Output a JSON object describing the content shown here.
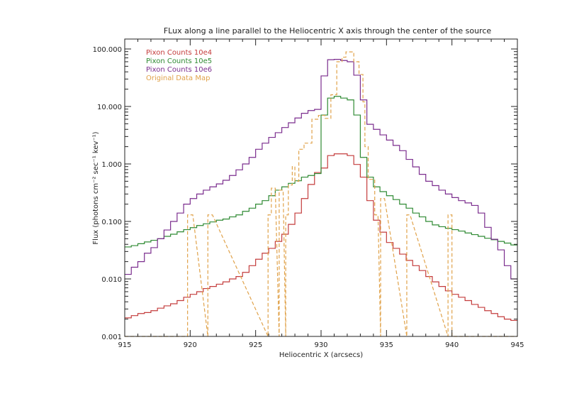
{
  "chart_data": {
    "type": "line",
    "title": "FLux along a line parallel to the Heliocentric X axis through the center of the source",
    "xlabel": "Heliocentric X (arcsecs)",
    "ylabel": "Flux (photons cm⁻² sec⁻¹ kev⁻¹)",
    "xlim": [
      915,
      945
    ],
    "ylim": [
      0.001,
      148
    ],
    "yscale": "log",
    "x_ticks": [
      915,
      920,
      925,
      930,
      935,
      940,
      945
    ],
    "x_tick_labels": [
      "915",
      "920",
      "925",
      "930",
      "935",
      "940",
      "945"
    ],
    "y_ticks": [
      100,
      10,
      1,
      0.1,
      0.01,
      0.001
    ],
    "y_tick_labels": [
      "100.000",
      "10.000",
      "1.000",
      "0.100",
      "0.010",
      "0.001"
    ],
    "legend_position": "top-left",
    "bin_start": 915,
    "bin_width": 0.5,
    "series": [
      {
        "name": "Pixon Counts 10e4",
        "color": "#c43c3c",
        "style": "step",
        "values": [
          0.0021,
          0.0023,
          0.0025,
          0.0026,
          0.0028,
          0.0031,
          0.0034,
          0.0037,
          0.0042,
          0.0048,
          0.0054,
          0.006,
          0.0068,
          0.0074,
          0.0081,
          0.0089,
          0.01,
          0.011,
          0.013,
          0.017,
          0.022,
          0.028,
          0.034,
          0.045,
          0.06,
          0.089,
          0.14,
          0.25,
          0.44,
          0.71,
          0.85,
          1.4,
          1.5,
          1.5,
          1.4,
          0.98,
          0.59,
          0.23,
          0.105,
          0.065,
          0.043,
          0.034,
          0.027,
          0.021,
          0.017,
          0.014,
          0.011,
          0.0089,
          0.0074,
          0.0062,
          0.0054,
          0.0048,
          0.0042,
          0.0036,
          0.0032,
          0.0028,
          0.0025,
          0.0022,
          0.002,
          0.0019
        ]
      },
      {
        "name": "Pixon Counts 10e5",
        "color": "#2f8a33",
        "style": "step",
        "values": [
          0.036,
          0.038,
          0.041,
          0.044,
          0.047,
          0.05,
          0.055,
          0.06,
          0.066,
          0.072,
          0.078,
          0.085,
          0.091,
          0.098,
          0.105,
          0.11,
          0.12,
          0.13,
          0.15,
          0.17,
          0.2,
          0.23,
          0.28,
          0.35,
          0.4,
          0.46,
          0.51,
          0.59,
          0.63,
          0.68,
          7.1,
          14,
          15,
          14,
          13,
          7.1,
          1.3,
          0.59,
          0.4,
          0.33,
          0.28,
          0.24,
          0.2,
          0.17,
          0.14,
          0.12,
          0.1,
          0.087,
          0.081,
          0.076,
          0.072,
          0.068,
          0.063,
          0.059,
          0.055,
          0.051,
          0.048,
          0.045,
          0.042,
          0.039
        ]
      },
      {
        "name": "Pixon Counts 10e6",
        "color": "#7b2d8e",
        "style": "step",
        "values": [
          0.012,
          0.016,
          0.02,
          0.028,
          0.035,
          0.05,
          0.071,
          0.1,
          0.14,
          0.2,
          0.25,
          0.3,
          0.35,
          0.4,
          0.45,
          0.52,
          0.63,
          0.79,
          1.0,
          1.3,
          1.8,
          2.3,
          2.9,
          3.5,
          4.3,
          5.2,
          6.3,
          7.6,
          8.5,
          8.9,
          34,
          65,
          66,
          63,
          60,
          35,
          13,
          4.9,
          4.0,
          3.2,
          2.6,
          2.1,
          1.7,
          1.2,
          0.89,
          0.66,
          0.5,
          0.42,
          0.35,
          0.3,
          0.26,
          0.23,
          0.21,
          0.19,
          0.14,
          0.079,
          0.049,
          0.032,
          0.017,
          0.01
        ]
      },
      {
        "name": "Original Data Map",
        "color": "#e0a24a",
        "style": "dashed-step",
        "floor": 0.001,
        "segments": [
          [
            919.8,
            920.2,
            0.13
          ],
          [
            921.35,
            921.7,
            0.13
          ],
          [
            925.95,
            926.2,
            0.13
          ],
          [
            926.2,
            926.5,
            0.38
          ],
          [
            926.8,
            927.1,
            0.35
          ],
          [
            927.3,
            927.5,
            0.13
          ],
          [
            927.5,
            927.8,
            0.43
          ],
          [
            927.8,
            928.0,
            0.9
          ],
          [
            928.0,
            928.3,
            0.5
          ],
          [
            928.3,
            928.7,
            1.8
          ],
          [
            928.7,
            929.3,
            2.3
          ],
          [
            929.3,
            929.8,
            6.0
          ],
          [
            929.8,
            930.3,
            7.0
          ],
          [
            930.3,
            930.75,
            6.2
          ],
          [
            930.75,
            931.2,
            16
          ],
          [
            931.2,
            931.6,
            60
          ],
          [
            931.6,
            931.9,
            72
          ],
          [
            931.9,
            932.5,
            89
          ],
          [
            932.5,
            932.9,
            60
          ],
          [
            932.9,
            933.2,
            36
          ],
          [
            933.2,
            933.35,
            12
          ],
          [
            933.35,
            933.6,
            2.0
          ],
          [
            933.6,
            934.1,
            0.54
          ],
          [
            934.1,
            934.35,
            0.13
          ],
          [
            934.55,
            934.85,
            0.25
          ],
          [
            936.55,
            936.8,
            0.13
          ],
          [
            939.7,
            940.0,
            0.13
          ]
        ]
      }
    ]
  }
}
